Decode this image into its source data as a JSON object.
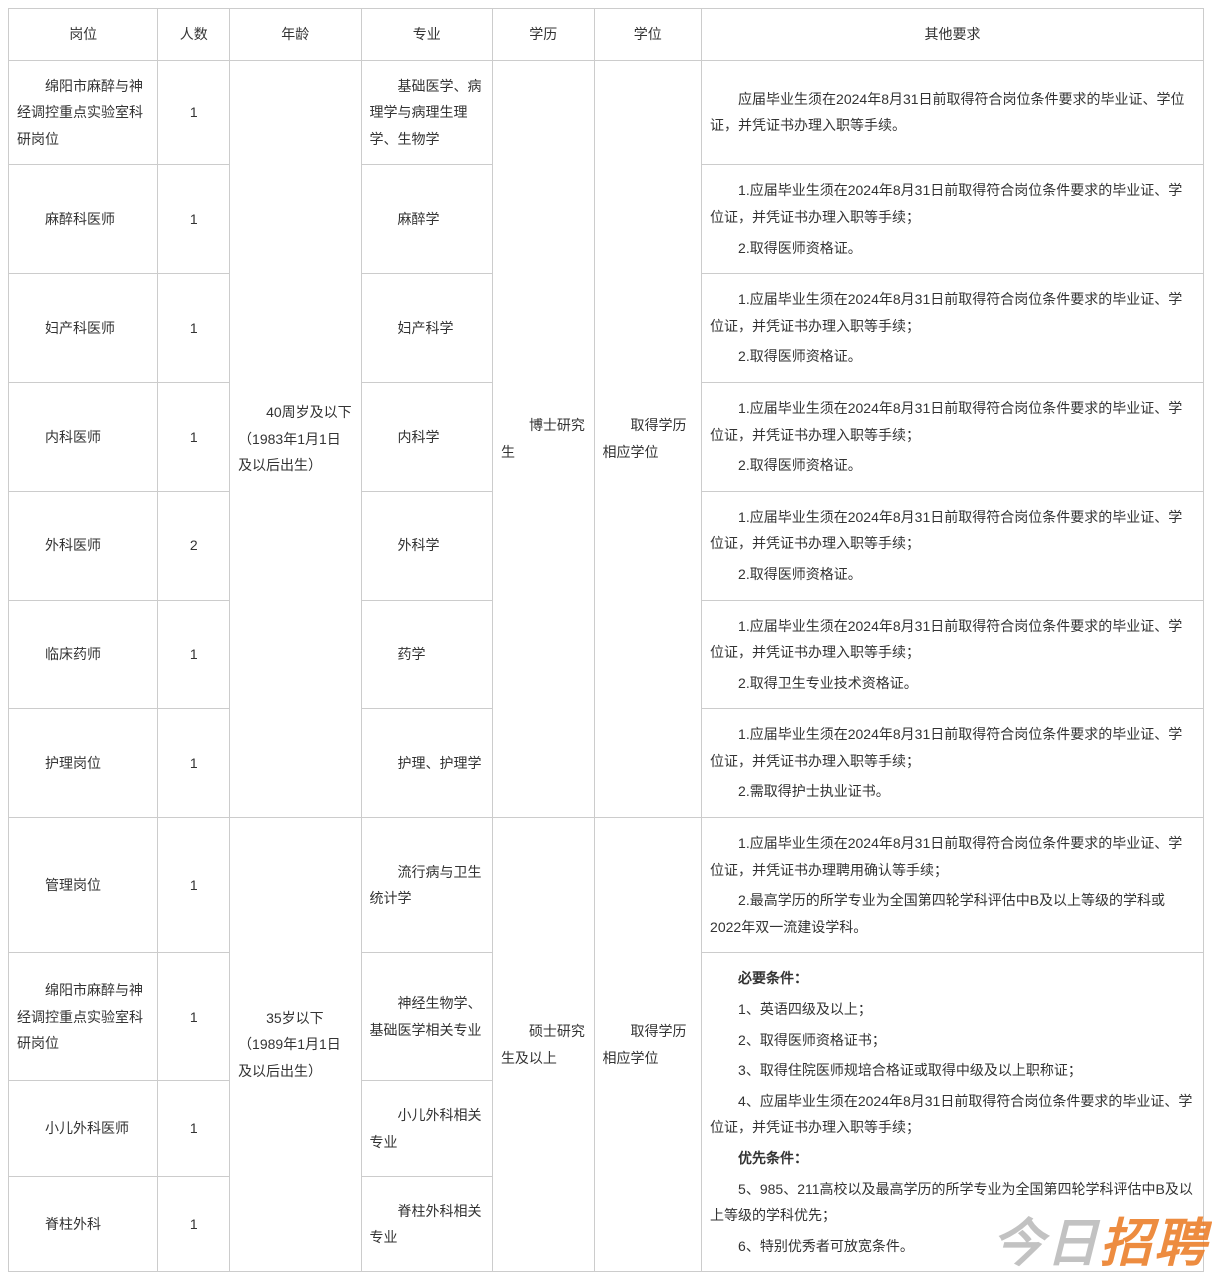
{
  "table": {
    "columns": [
      "岗位",
      "人数",
      "年龄",
      "专业",
      "学历",
      "学位",
      "其他要求"
    ],
    "border_color": "#cccccc",
    "background_color": "#ffffff",
    "text_color": "#333333",
    "font_size_pt": 10.5,
    "group1": {
      "age": "40周岁及以下（1983年1月1日及以后出生）",
      "edu": "博士研究生",
      "degree": "取得学历相应学位",
      "rows": [
        {
          "position": "绵阳市麻醉与神经调控重点实验室科研岗位",
          "count": "1",
          "major": "基础医学、病理学与病理生理学、生物学",
          "other": [
            "应届毕业生须在2024年8月31日前取得符合岗位条件要求的毕业证、学位证，并凭证书办理入职等手续。"
          ]
        },
        {
          "position": "麻醉科医师",
          "count": "1",
          "major": "麻醉学",
          "other": [
            "1.应届毕业生须在2024年8月31日前取得符合岗位条件要求的毕业证、学位证，并凭证书办理入职等手续；",
            "2.取得医师资格证。"
          ]
        },
        {
          "position": "妇产科医师",
          "count": "1",
          "major": "妇产科学",
          "other": [
            "1.应届毕业生须在2024年8月31日前取得符合岗位条件要求的毕业证、学位证，并凭证书办理入职等手续；",
            "2.取得医师资格证。"
          ]
        },
        {
          "position": "内科医师",
          "count": "1",
          "major": "内科学",
          "other": [
            "1.应届毕业生须在2024年8月31日前取得符合岗位条件要求的毕业证、学位证，并凭证书办理入职等手续；",
            "2.取得医师资格证。"
          ]
        },
        {
          "position": "外科医师",
          "count": "2",
          "major": "外科学",
          "other": [
            "1.应届毕业生须在2024年8月31日前取得符合岗位条件要求的毕业证、学位证，并凭证书办理入职等手续；",
            "2.取得医师资格证。"
          ]
        },
        {
          "position": "临床药师",
          "count": "1",
          "major": "药学",
          "other": [
            "1.应届毕业生须在2024年8月31日前取得符合岗位条件要求的毕业证、学位证，并凭证书办理入职等手续；",
            "2.取得卫生专业技术资格证。"
          ]
        },
        {
          "position": "护理岗位",
          "count": "1",
          "major": "护理、护理学",
          "other": [
            "1.应届毕业生须在2024年8月31日前取得符合岗位条件要求的毕业证、学位证，并凭证书办理入职等手续；",
            "2.需取得护士执业证书。"
          ]
        }
      ]
    },
    "group2": {
      "age": "35岁以下（1989年1月1日及以后出生）",
      "edu": "硕士研究生及以上",
      "degree": "取得学历相应学位",
      "row_mgmt": {
        "position": "管理岗位",
        "count": "1",
        "major": "流行病与卫生统计学",
        "other": [
          "1.应届毕业生须在2024年8月31日前取得符合岗位条件要求的毕业证、学位证，并凭证书办理聘用确认等手续；",
          "2.最高学历的所学专业为全国第四轮学科评估中B及以上等级的学科或2022年双一流建设学科。"
        ]
      },
      "shared_other": {
        "required_title": "必要条件：",
        "req": [
          "1、英语四级及以上；",
          "2、取得医师资格证书；",
          "3、取得住院医师规培合格证或取得中级及以上职称证；",
          "4、应届毕业生须在2024年8月31日前取得符合岗位条件要求的毕业证、学位证，并凭证书办理入职等手续；"
        ],
        "pref_title": "优先条件：",
        "pref": [
          "5、985、211高校以及最高学历的所学专业为全国第四轮学科评估中B及以上等级的学科优先；",
          "6、特别优秀者可放宽条件。"
        ]
      },
      "rows_shared": [
        {
          "position": "绵阳市麻醉与神经调控重点实验室科研岗位",
          "count": "1",
          "major": "神经生物学、基础医学相关专业"
        },
        {
          "position": "小儿外科医师",
          "count": "1",
          "major": "小儿外科相关专业"
        },
        {
          "position": "脊柱外科",
          "count": "1",
          "major": "脊柱外科相关专业"
        }
      ]
    }
  },
  "watermark": {
    "a": "今日",
    "b": "招聘",
    "color_a": "rgba(80,80,80,0.35)",
    "color_b": "rgba(234,120,30,0.85)"
  }
}
